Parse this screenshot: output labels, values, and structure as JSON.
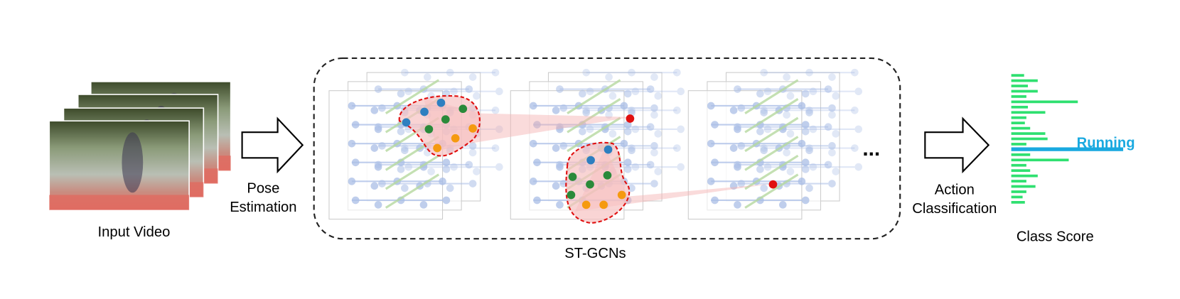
{
  "input_label": "Input Video",
  "pose_label": [
    "Pose",
    "Estimation"
  ],
  "stgcn_label": "ST-GCNs",
  "ellipsis": "...",
  "action_label": [
    "Action",
    "Classification"
  ],
  "predicted_class": "Running",
  "class_score_label": "Class Score"
}
